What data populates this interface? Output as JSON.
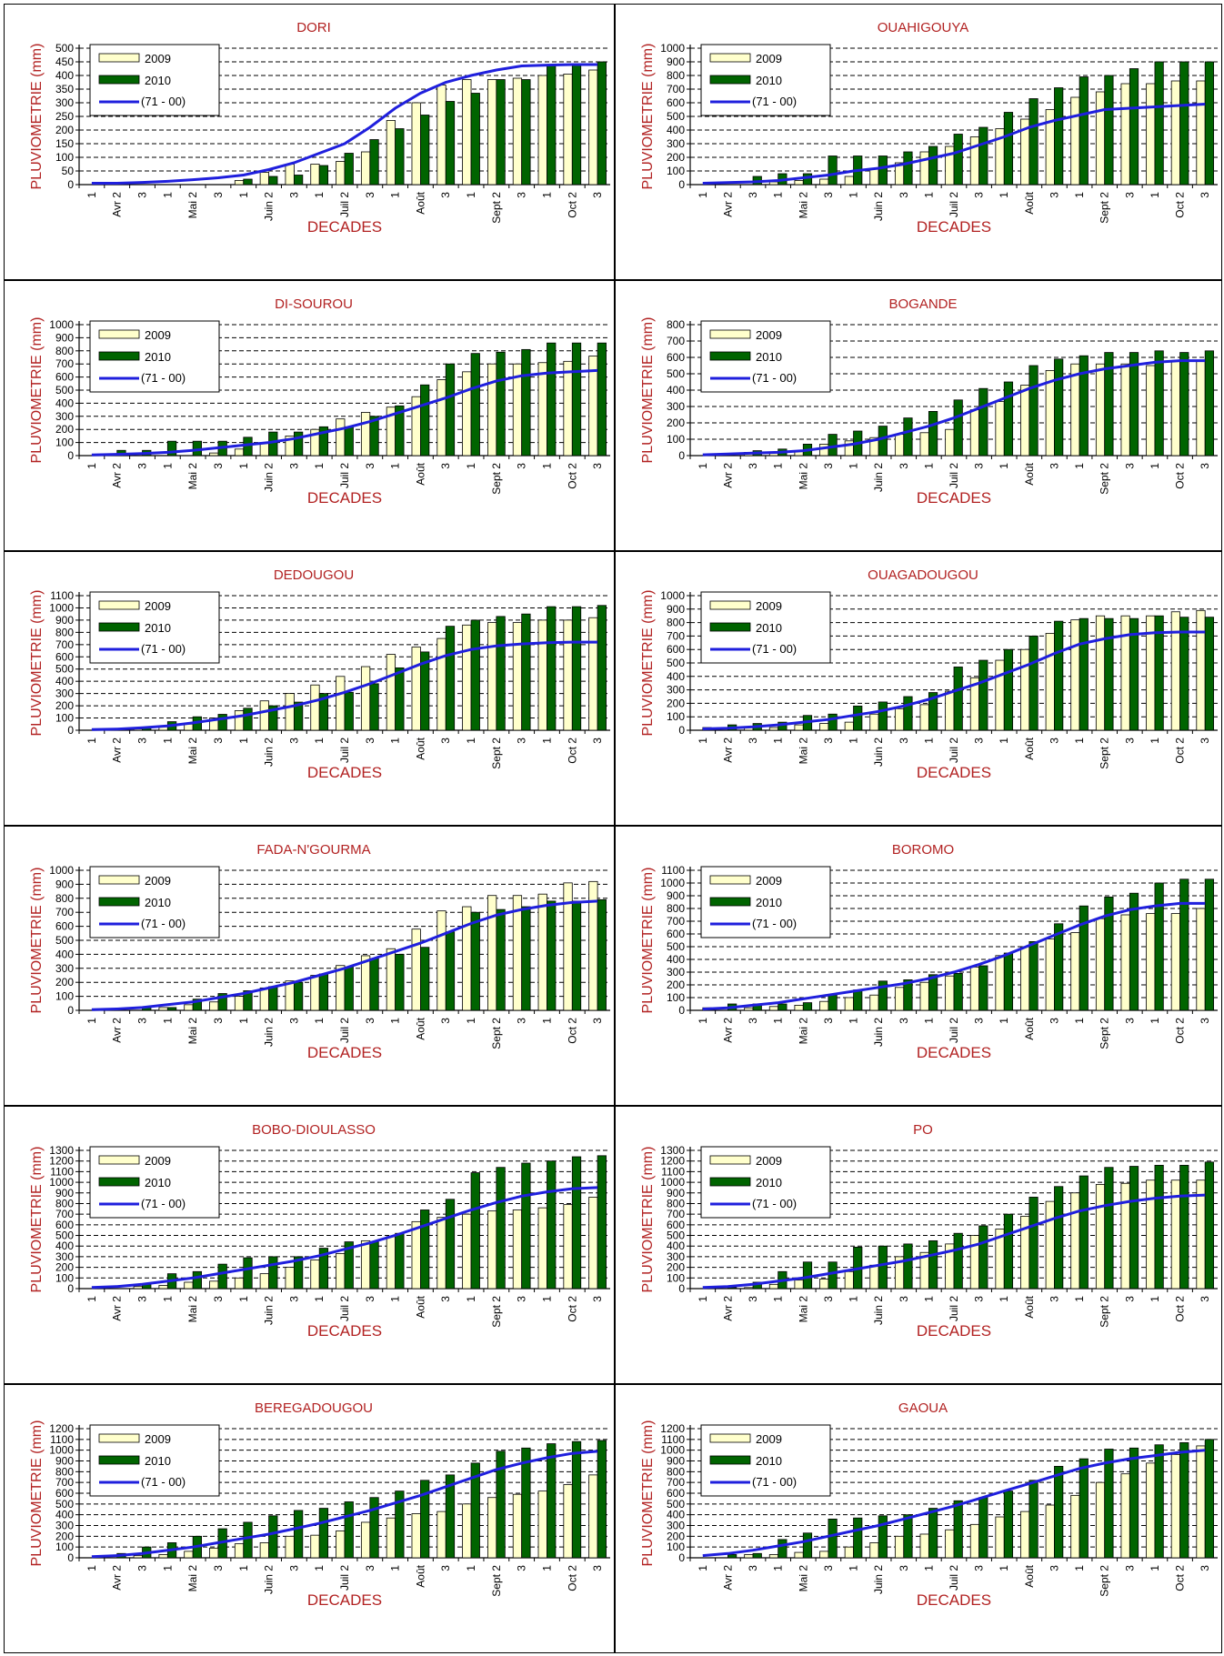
{
  "common": {
    "xlabel": "DECADES",
    "ylabel": "PLUVIOMETRIE (mm)",
    "x_ticks": [
      "1",
      "Avr 2",
      "3",
      "1",
      "Mai 2",
      "3",
      "1",
      "Juin 2",
      "3",
      "1",
      "Juil 2",
      "3",
      "1",
      "Août",
      "3",
      "1",
      "Sept 2",
      "3",
      "1",
      "Oct 2",
      "3"
    ],
    "legend": [
      "2009",
      "2010",
      "(71 - 00)"
    ],
    "colors": {
      "s2009": "#ffffcc",
      "s2010": "#006400",
      "normal": "#1f1fdd",
      "title": "#b22222"
    }
  },
  "chart_data": [
    {
      "type": "bar",
      "title": "DORI",
      "ylim": [
        0,
        500
      ],
      "ystep": 50,
      "series": [
        {
          "name": "2009",
          "values": [
            0,
            0,
            0,
            0,
            0,
            0,
            15,
            45,
            75,
            75,
            85,
            120,
            235,
            300,
            365,
            385,
            385,
            390,
            400,
            405,
            420
          ]
        },
        {
          "name": "2010",
          "values": [
            0,
            0,
            0,
            0,
            0,
            0,
            20,
            30,
            35,
            70,
            115,
            165,
            205,
            255,
            305,
            335,
            385,
            385,
            440,
            440,
            450
          ]
        },
        {
          "name": "(71 - 00)",
          "values": [
            5,
            5,
            8,
            12,
            18,
            25,
            35,
            55,
            80,
            115,
            150,
            210,
            280,
            335,
            375,
            400,
            420,
            435,
            438,
            440,
            440
          ]
        }
      ]
    },
    {
      "type": "bar",
      "title": "OUAHIGOUYA",
      "ylim": [
        0,
        1000
      ],
      "ystep": 100,
      "series": [
        {
          "name": "2009",
          "values": [
            0,
            0,
            0,
            20,
            30,
            40,
            60,
            120,
            160,
            240,
            280,
            350,
            410,
            480,
            550,
            640,
            680,
            740,
            740,
            760,
            760
          ]
        },
        {
          "name": "2010",
          "values": [
            0,
            0,
            60,
            80,
            80,
            210,
            210,
            210,
            240,
            280,
            370,
            420,
            530,
            630,
            710,
            790,
            800,
            850,
            900,
            900,
            900
          ]
        },
        {
          "name": "(71 - 00)",
          "values": [
            10,
            15,
            20,
            30,
            50,
            70,
            100,
            120,
            150,
            190,
            230,
            290,
            350,
            420,
            470,
            510,
            550,
            560,
            570,
            580,
            590
          ]
        }
      ]
    },
    {
      "type": "bar",
      "title": "DI-SOUROU",
      "ylim": [
        0,
        1000
      ],
      "ystep": 100,
      "series": [
        {
          "name": "2009",
          "values": [
            0,
            0,
            0,
            0,
            0,
            20,
            50,
            100,
            150,
            200,
            280,
            330,
            370,
            450,
            580,
            640,
            700,
            700,
            710,
            720,
            760
          ]
        },
        {
          "name": "2010",
          "values": [
            0,
            40,
            40,
            110,
            110,
            110,
            140,
            180,
            180,
            220,
            220,
            300,
            380,
            540,
            700,
            780,
            790,
            810,
            860,
            860,
            860
          ]
        },
        {
          "name": "(71 - 00)",
          "values": [
            5,
            10,
            15,
            25,
            40,
            60,
            80,
            100,
            130,
            170,
            210,
            260,
            320,
            380,
            440,
            510,
            570,
            610,
            630,
            640,
            650
          ]
        }
      ]
    },
    {
      "type": "bar",
      "title": "BOGANDE",
      "ylim": [
        0,
        800
      ],
      "ystep": 100,
      "series": [
        {
          "name": "2009",
          "values": [
            0,
            0,
            20,
            20,
            30,
            70,
            90,
            110,
            130,
            140,
            160,
            280,
            330,
            430,
            520,
            560,
            560,
            560,
            550,
            580,
            580
          ]
        },
        {
          "name": "2010",
          "values": [
            0,
            0,
            30,
            40,
            70,
            130,
            150,
            180,
            230,
            270,
            340,
            410,
            450,
            550,
            590,
            610,
            630,
            630,
            640,
            630,
            640
          ]
        },
        {
          "name": "(71 - 00)",
          "values": [
            5,
            10,
            15,
            20,
            30,
            50,
            70,
            100,
            140,
            180,
            230,
            290,
            350,
            410,
            460,
            500,
            530,
            550,
            570,
            580,
            580
          ]
        }
      ]
    },
    {
      "type": "bar",
      "title": "DEDOUGOU",
      "ylim": [
        0,
        1100
      ],
      "ystep": 100,
      "series": [
        {
          "name": "2009",
          "values": [
            0,
            0,
            10,
            30,
            50,
            100,
            160,
            240,
            300,
            370,
            440,
            520,
            620,
            680,
            750,
            860,
            880,
            880,
            900,
            900,
            920
          ]
        },
        {
          "name": "2010",
          "values": [
            0,
            10,
            20,
            70,
            110,
            130,
            180,
            200,
            230,
            300,
            310,
            380,
            510,
            640,
            850,
            900,
            930,
            950,
            1010,
            1010,
            1020
          ]
        },
        {
          "name": "(71 - 00)",
          "values": [
            5,
            10,
            20,
            35,
            60,
            90,
            120,
            160,
            200,
            250,
            310,
            380,
            460,
            540,
            610,
            660,
            690,
            705,
            715,
            720,
            720
          ]
        }
      ]
    },
    {
      "type": "bar",
      "title": "OUAGADOUGOU",
      "ylim": [
        0,
        1000
      ],
      "ystep": 100,
      "series": [
        {
          "name": "2009",
          "values": [
            0,
            0,
            20,
            20,
            40,
            50,
            60,
            120,
            160,
            190,
            290,
            390,
            520,
            600,
            720,
            820,
            850,
            850,
            850,
            880,
            890
          ]
        },
        {
          "name": "2010",
          "values": [
            20,
            40,
            50,
            60,
            110,
            120,
            180,
            210,
            250,
            280,
            470,
            520,
            600,
            700,
            810,
            830,
            830,
            830,
            850,
            840,
            840
          ]
        },
        {
          "name": "(71 - 00)",
          "values": [
            10,
            15,
            25,
            40,
            60,
            80,
            110,
            140,
            180,
            230,
            290,
            350,
            420,
            490,
            570,
            640,
            680,
            710,
            725,
            730,
            730
          ]
        }
      ]
    },
    {
      "type": "bar",
      "title": "FADA-N'GOURMA",
      "ylim": [
        0,
        1000
      ],
      "ystep": 100,
      "series": [
        {
          "name": "2009",
          "values": [
            0,
            0,
            0,
            20,
            40,
            60,
            100,
            160,
            210,
            250,
            320,
            390,
            440,
            580,
            710,
            740,
            820,
            820,
            830,
            910,
            920
          ]
        },
        {
          "name": "2010",
          "values": [
            0,
            0,
            20,
            20,
            80,
            120,
            140,
            170,
            200,
            260,
            310,
            370,
            400,
            450,
            560,
            700,
            720,
            740,
            780,
            780,
            790
          ]
        },
        {
          "name": "(71 - 00)",
          "values": [
            5,
            10,
            20,
            40,
            60,
            90,
            120,
            160,
            200,
            250,
            300,
            360,
            420,
            480,
            550,
            620,
            680,
            720,
            750,
            770,
            780
          ]
        }
      ]
    },
    {
      "type": "bar",
      "title": "BOROMO",
      "ylim": [
        0,
        1100
      ],
      "ystep": 100,
      "series": [
        {
          "name": "2009",
          "values": [
            0,
            0,
            20,
            30,
            40,
            70,
            100,
            120,
            180,
            220,
            270,
            340,
            430,
            500,
            560,
            610,
            720,
            750,
            760,
            760,
            800
          ]
        },
        {
          "name": "2010",
          "values": [
            20,
            50,
            50,
            50,
            60,
            120,
            160,
            230,
            240,
            280,
            290,
            350,
            450,
            540,
            680,
            820,
            890,
            920,
            1000,
            1030,
            1030
          ]
        },
        {
          "name": "(71 - 00)",
          "values": [
            10,
            20,
            40,
            60,
            90,
            120,
            150,
            180,
            210,
            250,
            300,
            360,
            430,
            510,
            590,
            670,
            740,
            790,
            820,
            840,
            840
          ]
        }
      ]
    },
    {
      "type": "bar",
      "title": "BOBO-DIOULASSO",
      "ylim": [
        0,
        1300
      ],
      "ystep": 100,
      "series": [
        {
          "name": "2009",
          "values": [
            0,
            0,
            20,
            30,
            60,
            70,
            100,
            140,
            200,
            270,
            330,
            450,
            490,
            630,
            670,
            700,
            730,
            740,
            760,
            790,
            860
          ]
        },
        {
          "name": "2010",
          "values": [
            0,
            0,
            40,
            140,
            160,
            230,
            290,
            300,
            300,
            380,
            440,
            440,
            520,
            740,
            840,
            1090,
            1140,
            1180,
            1200,
            1240,
            1250
          ]
        },
        {
          "name": "(71 - 00)",
          "values": [
            10,
            20,
            40,
            70,
            100,
            140,
            180,
            220,
            260,
            310,
            370,
            430,
            500,
            580,
            660,
            740,
            810,
            870,
            910,
            940,
            950
          ]
        }
      ]
    },
    {
      "type": "bar",
      "title": "PO",
      "ylim": [
        0,
        1300
      ],
      "ystep": 100,
      "series": [
        {
          "name": "2009",
          "values": [
            0,
            0,
            10,
            40,
            80,
            90,
            160,
            220,
            300,
            340,
            420,
            500,
            560,
            680,
            820,
            900,
            980,
            990,
            1020,
            1020,
            1020
          ]
        },
        {
          "name": "2010",
          "values": [
            0,
            10,
            60,
            160,
            250,
            250,
            390,
            400,
            420,
            450,
            520,
            590,
            700,
            860,
            960,
            1060,
            1140,
            1150,
            1160,
            1160,
            1190
          ]
        },
        {
          "name": "(71 - 00)",
          "values": [
            10,
            20,
            40,
            70,
            100,
            140,
            180,
            220,
            260,
            310,
            360,
            420,
            500,
            580,
            660,
            730,
            780,
            820,
            850,
            870,
            880
          ]
        }
      ]
    },
    {
      "type": "bar",
      "title": "BEREGADOUGOU",
      "ylim": [
        0,
        1200
      ],
      "ystep": 100,
      "series": [
        {
          "name": "2009",
          "values": [
            0,
            0,
            20,
            30,
            60,
            90,
            130,
            140,
            200,
            210,
            250,
            330,
            370,
            410,
            430,
            500,
            560,
            590,
            620,
            680,
            770
          ]
        },
        {
          "name": "2010",
          "values": [
            0,
            40,
            100,
            140,
            200,
            270,
            330,
            390,
            440,
            460,
            520,
            560,
            620,
            720,
            770,
            880,
            990,
            1020,
            1060,
            1080,
            1090
          ]
        },
        {
          "name": "(71 - 00)",
          "values": [
            10,
            20,
            40,
            70,
            100,
            140,
            180,
            220,
            270,
            320,
            380,
            440,
            510,
            580,
            660,
            740,
            820,
            880,
            930,
            970,
            990
          ]
        }
      ]
    },
    {
      "type": "bar",
      "title": "GAOUA",
      "ylim": [
        0,
        1200
      ],
      "ystep": 100,
      "series": [
        {
          "name": "2009",
          "values": [
            0,
            0,
            30,
            30,
            50,
            60,
            100,
            140,
            200,
            220,
            260,
            310,
            380,
            430,
            490,
            580,
            700,
            780,
            880,
            960,
            1040
          ]
        },
        {
          "name": "2010",
          "values": [
            0,
            30,
            40,
            170,
            230,
            360,
            370,
            390,
            400,
            460,
            530,
            560,
            620,
            720,
            850,
            920,
            1010,
            1020,
            1050,
            1070,
            1100
          ]
        },
        {
          "name": "(71 - 00)",
          "values": [
            20,
            40,
            70,
            110,
            150,
            200,
            250,
            300,
            360,
            420,
            480,
            550,
            620,
            690,
            760,
            830,
            880,
            920,
            950,
            980,
            1000
          ]
        }
      ]
    }
  ]
}
